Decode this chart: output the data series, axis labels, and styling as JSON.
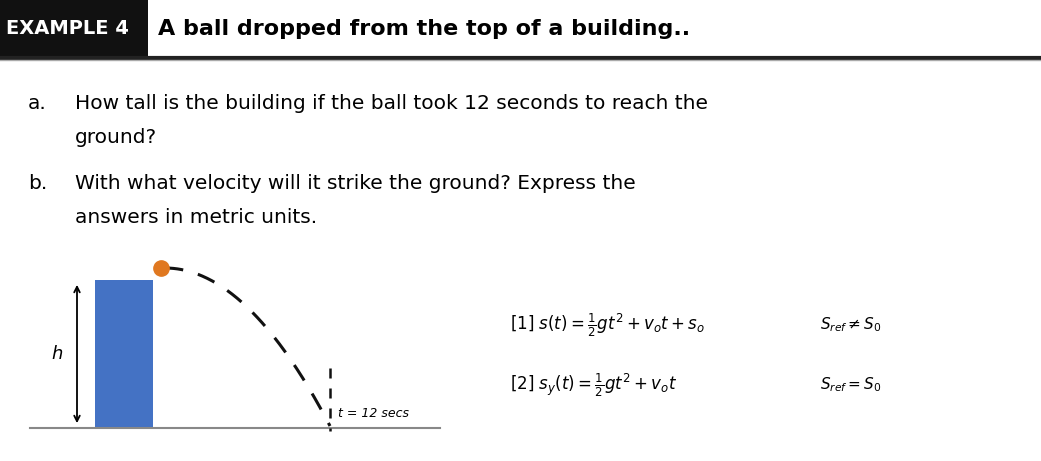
{
  "bg_color": "#ffffff",
  "header_bg": "#111111",
  "header_text": "EXAMPLE 4",
  "header_text_color": "#ffffff",
  "title_text": "A ball dropped from the top of a building..",
  "title_color": "#000000",
  "question_a_label": "a.",
  "question_a_line1": "How tall is the building if the ball took 12 seconds to reach the",
  "question_a_line2": "ground?",
  "question_b_label": "b.",
  "question_b_line1": "With what velocity will it strike the ground? Express the",
  "question_b_line2": "answers in metric units.",
  "building_color": "#4472c4",
  "arrow_color": "#000000",
  "ball_color": "#e07820",
  "ground_color": "#888888",
  "h_label": "h",
  "t_label": "t = 12 secs",
  "eq1": "[1] $s(t) = \\frac{1}{2}gt^2 + v_ot + s_o$",
  "eq1_right": "$S_{ref} \\neq S_0$",
  "eq2": "[2] $s_y(t) = \\frac{1}{2}gt^2 + v_ot$",
  "eq2_right": "$S_{ref} = S_0$",
  "header_line_color": "#333333"
}
